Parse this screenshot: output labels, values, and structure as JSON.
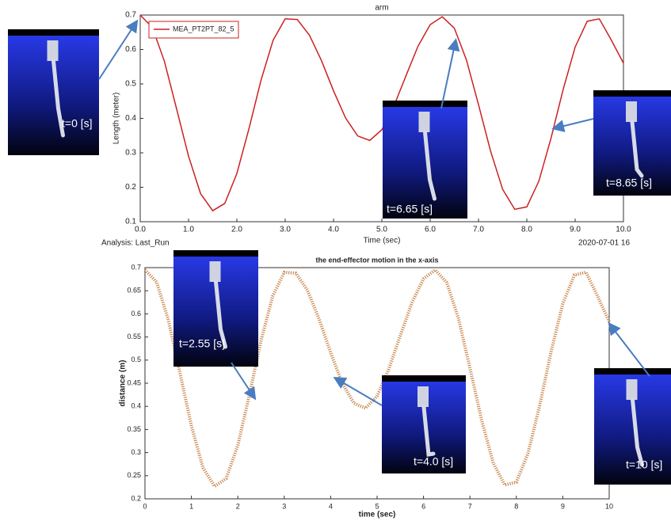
{
  "chart_data": [
    {
      "type": "line",
      "title": "arm",
      "x_label": "Time (sec)",
      "y_label": "Length (meter)",
      "footer_left": "Analysis:  Last_Run",
      "footer_right": "2020-07-01 16",
      "x": [
        0,
        0.25,
        0.5,
        0.75,
        1,
        1.25,
        1.5,
        1.75,
        2,
        2.25,
        2.5,
        2.75,
        3,
        3.25,
        3.5,
        3.75,
        4,
        4.25,
        4.5,
        4.75,
        5,
        5.25,
        5.5,
        5.75,
        6,
        6.25,
        6.5,
        6.75,
        7,
        7.25,
        7.5,
        7.75,
        8,
        8.25,
        8.5,
        8.75,
        9,
        9.25,
        9.5,
        9.75,
        10
      ],
      "series": [
        {
          "name": "MEA_PT2PT_82_5",
          "color": "#cc2020",
          "values": [
            0.7,
            0.664,
            0.566,
            0.429,
            0.29,
            0.181,
            0.132,
            0.153,
            0.24,
            0.37,
            0.511,
            0.627,
            0.689,
            0.687,
            0.642,
            0.568,
            0.48,
            0.401,
            0.349,
            0.336,
            0.367,
            0.436,
            0.524,
            0.61,
            0.672,
            0.695,
            0.662,
            0.57,
            0.44,
            0.305,
            0.194,
            0.136,
            0.143,
            0.218,
            0.342,
            0.483,
            0.607,
            0.682,
            0.689,
            0.627,
            0.56
          ]
        }
      ],
      "xlim": [
        0,
        10
      ],
      "ylim": [
        0.1,
        0.7
      ],
      "xticks": [
        {
          "value": 0,
          "label": "0.0"
        },
        {
          "value": 1,
          "label": "1.0"
        },
        {
          "value": 2,
          "label": "2.0"
        },
        {
          "value": 3,
          "label": "3.0"
        },
        {
          "value": 4,
          "label": "4.0"
        },
        {
          "value": 5,
          "label": "5.0"
        },
        {
          "value": 6,
          "label": "6.0"
        },
        {
          "value": 7,
          "label": "7.0"
        },
        {
          "value": 8,
          "label": "8.0"
        },
        {
          "value": 9,
          "label": "9.0"
        },
        {
          "value": 10,
          "label": "10.0"
        }
      ],
      "yticks": [
        0.1,
        0.2,
        0.3,
        0.4,
        0.5,
        0.6,
        0.7
      ],
      "annotations": [
        "t=0 [s]",
        "t=6.65 [s]",
        "t=8.65 [s]"
      ]
    },
    {
      "type": "line",
      "title": "the end-effector motion in the x-axis",
      "x_label": "time (sec)",
      "y_label": "distance (m)",
      "x": [
        0,
        0.25,
        0.5,
        0.75,
        1,
        1.25,
        1.5,
        1.75,
        2,
        2.25,
        2.5,
        2.75,
        3,
        3.25,
        3.5,
        3.75,
        4,
        4.25,
        4.5,
        4.75,
        5,
        5.25,
        5.5,
        5.75,
        6,
        6.25,
        6.5,
        6.75,
        7,
        7.25,
        7.5,
        7.75,
        8,
        8.25,
        8.5,
        8.75,
        9,
        9.25,
        9.5,
        9.75,
        10
      ],
      "color": "#c8874e",
      "values": [
        0.695,
        0.669,
        0.588,
        0.474,
        0.358,
        0.267,
        0.227,
        0.244,
        0.316,
        0.425,
        0.542,
        0.638,
        0.69,
        0.688,
        0.651,
        0.589,
        0.516,
        0.45,
        0.407,
        0.396,
        0.422,
        0.48,
        0.553,
        0.624,
        0.676,
        0.695,
        0.668,
        0.591,
        0.483,
        0.371,
        0.278,
        0.23,
        0.236,
        0.298,
        0.401,
        0.519,
        0.622,
        0.684,
        0.69,
        0.638,
        0.583
      ],
      "xlim": [
        0,
        10
      ],
      "ylim": [
        0.2,
        0.7
      ],
      "xticks": [
        0,
        1,
        2,
        3,
        4,
        5,
        6,
        7,
        8,
        9,
        10
      ],
      "yticks": [
        0.2,
        0.25,
        0.3,
        0.35,
        0.4,
        0.45,
        0.5,
        0.55,
        0.6,
        0.65,
        0.7
      ],
      "annotations": [
        "t=2.55 [s]",
        "t=4.0 [s]",
        "t=10 [s]"
      ]
    }
  ]
}
